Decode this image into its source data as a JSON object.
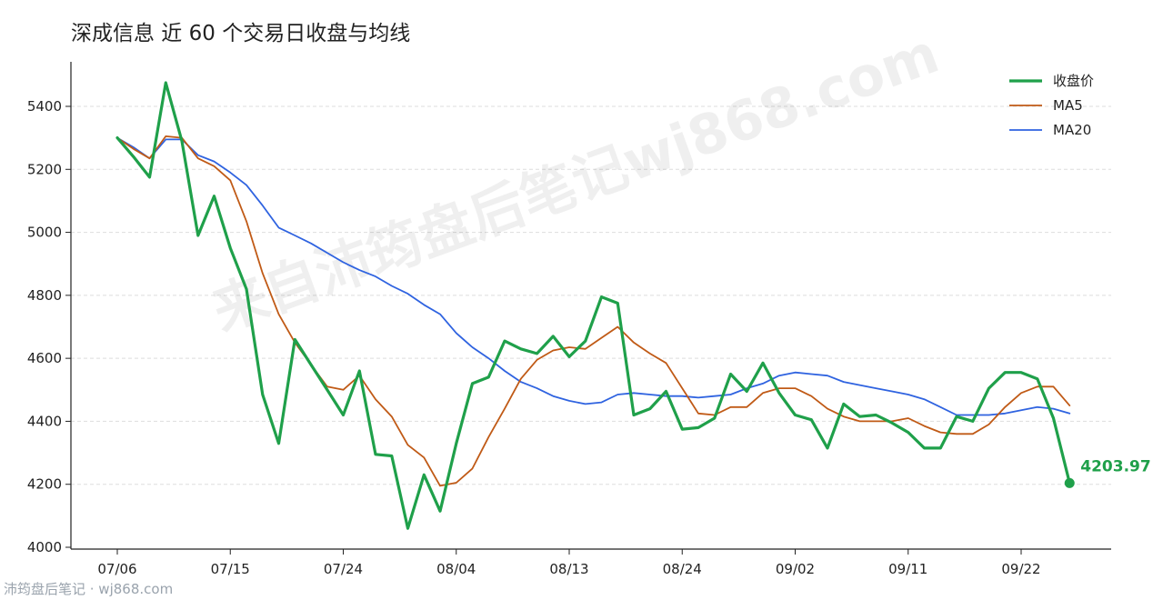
{
  "chart_data": {
    "type": "line",
    "title": "深成信息 近 60 个交易日收盘与均线",
    "xlabel": "",
    "ylabel": "",
    "ylim": [
      4000,
      5450
    ],
    "yticks": [
      4000,
      4200,
      4400,
      4600,
      4800,
      5000,
      5200,
      5400
    ],
    "xticks": [
      {
        "index": 0,
        "label": "07/06"
      },
      {
        "index": 7,
        "label": "07/15"
      },
      {
        "index": 14,
        "label": "07/24"
      },
      {
        "index": 21,
        "label": "08/04"
      },
      {
        "index": 28,
        "label": "08/13"
      },
      {
        "index": 35,
        "label": "08/24"
      },
      {
        "index": 42,
        "label": "09/02"
      },
      {
        "index": 49,
        "label": "09/11"
      },
      {
        "index": 56,
        "label": "09/22"
      }
    ],
    "grid": "horizontal-dashed",
    "legend_position": "top-right",
    "series": [
      {
        "name": "收盘价",
        "color": "#1fa04a",
        "values": [
          5300,
          5240,
          5175,
          5475,
          5290,
          4990,
          5115,
          4950,
          4820,
          4485,
          4330,
          4660,
          4580,
          4500,
          4420,
          4560,
          4295,
          4290,
          4060,
          4230,
          4115,
          4330,
          4520,
          4540,
          4655,
          4630,
          4615,
          4670,
          4605,
          4655,
          4795,
          4775,
          4420,
          4440,
          4495,
          4375,
          4380,
          4410,
          4550,
          4495,
          4585,
          4490,
          4420,
          4405,
          4315,
          4455,
          4415,
          4420,
          4395,
          4365,
          4315,
          4315,
          4415,
          4400,
          4505,
          4555,
          4555,
          4535,
          4410,
          4203.97
        ]
      },
      {
        "name": "MA5",
        "color": "#c05a16",
        "values": [
          5300,
          5265,
          5235,
          5305,
          5300,
          5235,
          5210,
          5165,
          5035,
          4870,
          4740,
          4650,
          4580,
          4510,
          4500,
          4545,
          4470,
          4415,
          4325,
          4285,
          4195,
          4205,
          4250,
          4350,
          4440,
          4535,
          4595,
          4625,
          4635,
          4630,
          4665,
          4700,
          4650,
          4615,
          4585,
          4505,
          4425,
          4420,
          4445,
          4445,
          4490,
          4505,
          4505,
          4480,
          4440,
          4415,
          4400,
          4400,
          4400,
          4410,
          4385,
          4365,
          4360,
          4360,
          4390,
          4445,
          4490,
          4510,
          4510,
          4450
        ]
      },
      {
        "name": "MA20",
        "color": "#2f63e0",
        "values": [
          5300,
          5270,
          5235,
          5295,
          5295,
          5245,
          5225,
          5190,
          5150,
          5085,
          5015,
          4990,
          4965,
          4935,
          4905,
          4880,
          4860,
          4830,
          4805,
          4770,
          4740,
          4680,
          4635,
          4600,
          4560,
          4525,
          4505,
          4480,
          4465,
          4455,
          4460,
          4485,
          4490,
          4485,
          4480,
          4480,
          4475,
          4480,
          4485,
          4505,
          4520,
          4545,
          4555,
          4550,
          4545,
          4525,
          4515,
          4505,
          4495,
          4485,
          4470,
          4445,
          4420,
          4420,
          4420,
          4425,
          4435,
          4445,
          4440,
          4425
        ]
      }
    ],
    "last_value_label": "4203.97"
  },
  "watermark": "来自沛筠盘后笔记wj868.com",
  "footer": "沛筠盘后笔记 · wj868.com"
}
